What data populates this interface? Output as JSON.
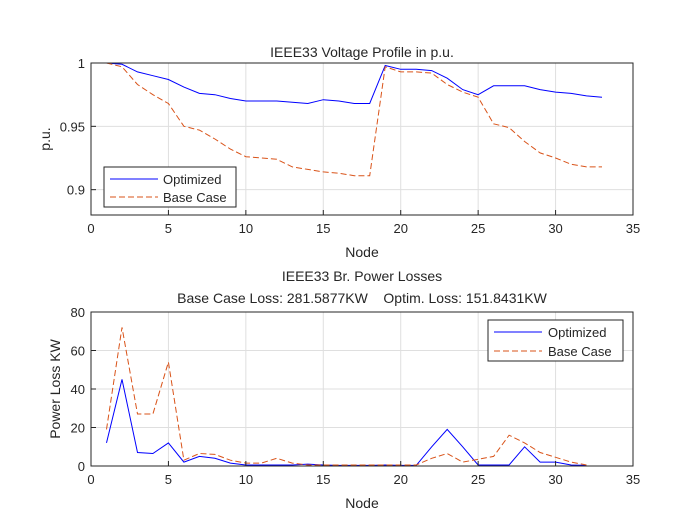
{
  "chart_data": [
    {
      "type": "line",
      "title": "IEEE33 Voltage Profile in p.u.",
      "xlabel": "Node",
      "ylabel": "p.u.",
      "xlim": [
        0,
        35
      ],
      "ylim": [
        0.88,
        1.0
      ],
      "xticks": [
        "0",
        "5",
        "10",
        "15",
        "20",
        "25",
        "30",
        "35"
      ],
      "yticks": [
        "0.9",
        "0.95",
        "1"
      ],
      "grid": true,
      "legend": "bottom-left",
      "x": [
        1,
        2,
        3,
        4,
        5,
        6,
        7,
        8,
        9,
        10,
        11,
        12,
        13,
        14,
        15,
        16,
        17,
        18,
        19,
        20,
        21,
        22,
        23,
        24,
        25,
        26,
        27,
        28,
        29,
        30,
        31,
        32,
        33
      ],
      "series": [
        {
          "name": "Optimized",
          "color": "#0000ff",
          "style": "solid",
          "values": [
            1.0,
            0.999,
            0.993,
            0.99,
            0.987,
            0.981,
            0.976,
            0.975,
            0.972,
            0.97,
            0.97,
            0.97,
            0.969,
            0.968,
            0.971,
            0.97,
            0.968,
            0.968,
            0.998,
            0.995,
            0.995,
            0.994,
            0.988,
            0.979,
            0.975,
            0.982,
            0.982,
            0.982,
            0.979,
            0.977,
            0.976,
            0.974,
            0.973
          ]
        },
        {
          "name": "Base Case",
          "color": "#d95319",
          "style": "dashed",
          "values": [
            1.0,
            0.997,
            0.983,
            0.975,
            0.968,
            0.95,
            0.947,
            0.94,
            0.932,
            0.926,
            0.925,
            0.924,
            0.918,
            0.916,
            0.914,
            0.913,
            0.911,
            0.911,
            0.997,
            0.993,
            0.993,
            0.992,
            0.983,
            0.977,
            0.973,
            0.952,
            0.949,
            0.938,
            0.929,
            0.925,
            0.92,
            0.918,
            0.918
          ]
        }
      ]
    },
    {
      "type": "line",
      "title": "IEEE33 Br. Power Losses",
      "subtitle": "Base Case Loss: 281.5877KW    Optim. Loss: 151.8431KW",
      "xlabel": "Node",
      "ylabel": "Power Loss KW",
      "xlim": [
        0,
        35
      ],
      "ylim": [
        0,
        80
      ],
      "xticks": [
        "0",
        "5",
        "10",
        "15",
        "20",
        "25",
        "30",
        "35"
      ],
      "yticks": [
        "0",
        "20",
        "40",
        "60",
        "80"
      ],
      "grid": true,
      "legend": "top-right",
      "x": [
        1,
        2,
        3,
        4,
        5,
        6,
        7,
        8,
        9,
        10,
        11,
        12,
        13,
        14,
        15,
        16,
        17,
        18,
        19,
        20,
        21,
        22,
        23,
        24,
        25,
        26,
        27,
        28,
        29,
        30,
        31,
        32
      ],
      "series": [
        {
          "name": "Optimized",
          "color": "#0000ff",
          "style": "solid",
          "values": [
            12,
            45,
            7,
            6.5,
            12,
            2,
            5,
            4,
            1.5,
            0.5,
            0.5,
            0.5,
            0.5,
            1,
            0.5,
            0.3,
            0.3,
            0.3,
            0.5,
            0.3,
            0.3,
            10,
            19,
            10,
            0.5,
            0.5,
            0.5,
            10,
            2,
            2,
            0.5,
            0.3
          ]
        },
        {
          "name": "Base Case",
          "color": "#d95319",
          "style": "dashed",
          "values": [
            19,
            72,
            27,
            27,
            54,
            3,
            6.5,
            6,
            3,
            1.5,
            1.5,
            4,
            1.5,
            0.5,
            0.5,
            0.5,
            0.5,
            0.5,
            0.5,
            0.5,
            0.5,
            4,
            6.5,
            2,
            3.5,
            5,
            16,
            12,
            7,
            4.5,
            2,
            0.5
          ]
        }
      ]
    }
  ]
}
